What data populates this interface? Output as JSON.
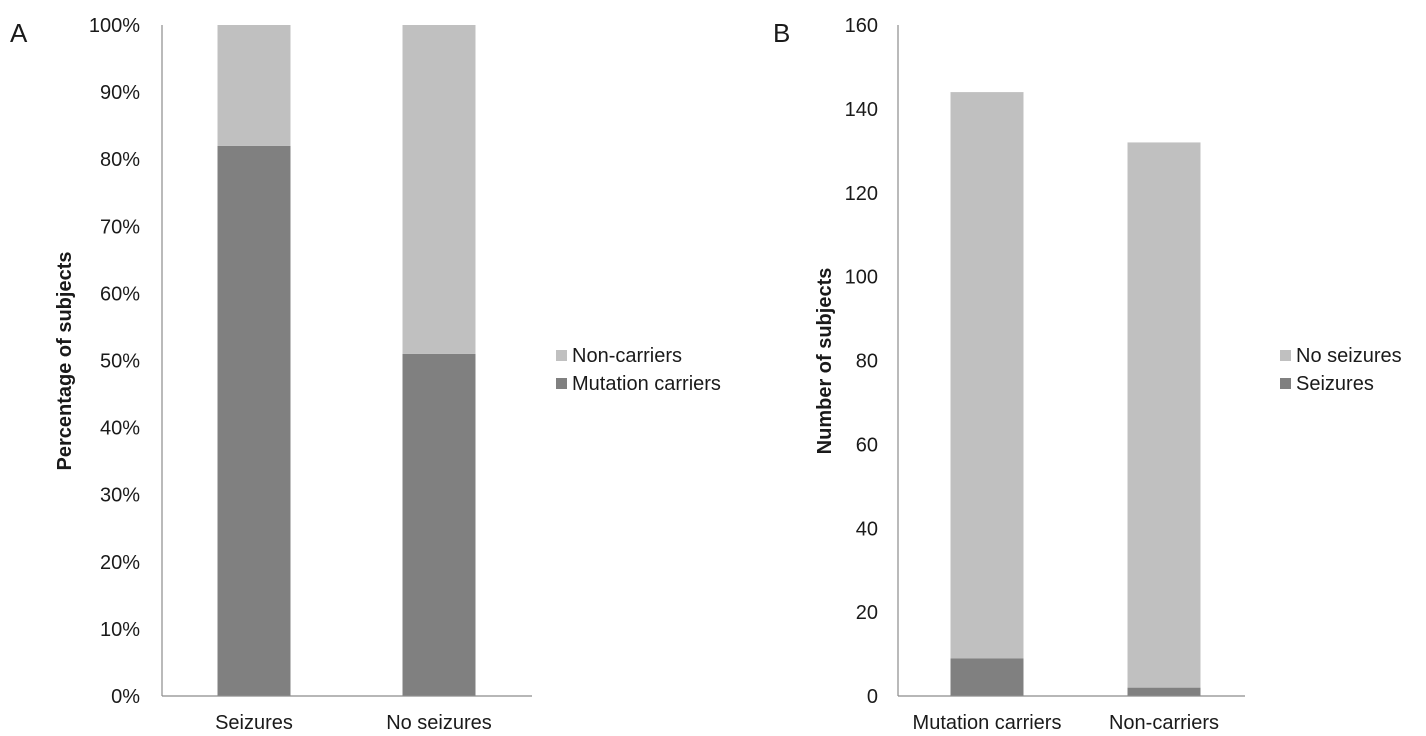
{
  "chart_data": [
    {
      "type": "bar",
      "stacked": true,
      "panel_label": "A",
      "categories": [
        "Seizures",
        "No seizures"
      ],
      "series": [
        {
          "name": "Mutation carriers",
          "values": [
            82,
            51
          ],
          "color": "#808080"
        },
        {
          "name": "Non-carriers",
          "values": [
            18,
            49
          ],
          "color": "#c0c0c0"
        }
      ],
      "ylabel": "Percentage of subjects",
      "xlabel": "",
      "ylim": [
        0,
        100
      ],
      "yticks": [
        "0%",
        "10%",
        "20%",
        "30%",
        "40%",
        "50%",
        "60%",
        "70%",
        "80%",
        "90%",
        "100%"
      ],
      "legend": {
        "placement": "right",
        "entries": [
          "Non-carriers",
          "Mutation carriers"
        ]
      },
      "grid": false
    },
    {
      "type": "bar",
      "stacked": true,
      "panel_label": "B",
      "categories": [
        "Mutation carriers",
        "Non-carriers"
      ],
      "series": [
        {
          "name": "Seizures",
          "values": [
            9,
            2
          ],
          "color": "#808080"
        },
        {
          "name": "No seizures",
          "values": [
            135,
            130
          ],
          "color": "#c0c0c0"
        }
      ],
      "ylabel": "Number of subjects",
      "xlabel": "",
      "ylim": [
        0,
        160
      ],
      "yticks": [
        "0",
        "20",
        "40",
        "60",
        "80",
        "100",
        "120",
        "140",
        "160"
      ],
      "legend": {
        "placement": "right",
        "entries": [
          "No seizures",
          "Seizures"
        ]
      },
      "grid": false
    }
  ]
}
